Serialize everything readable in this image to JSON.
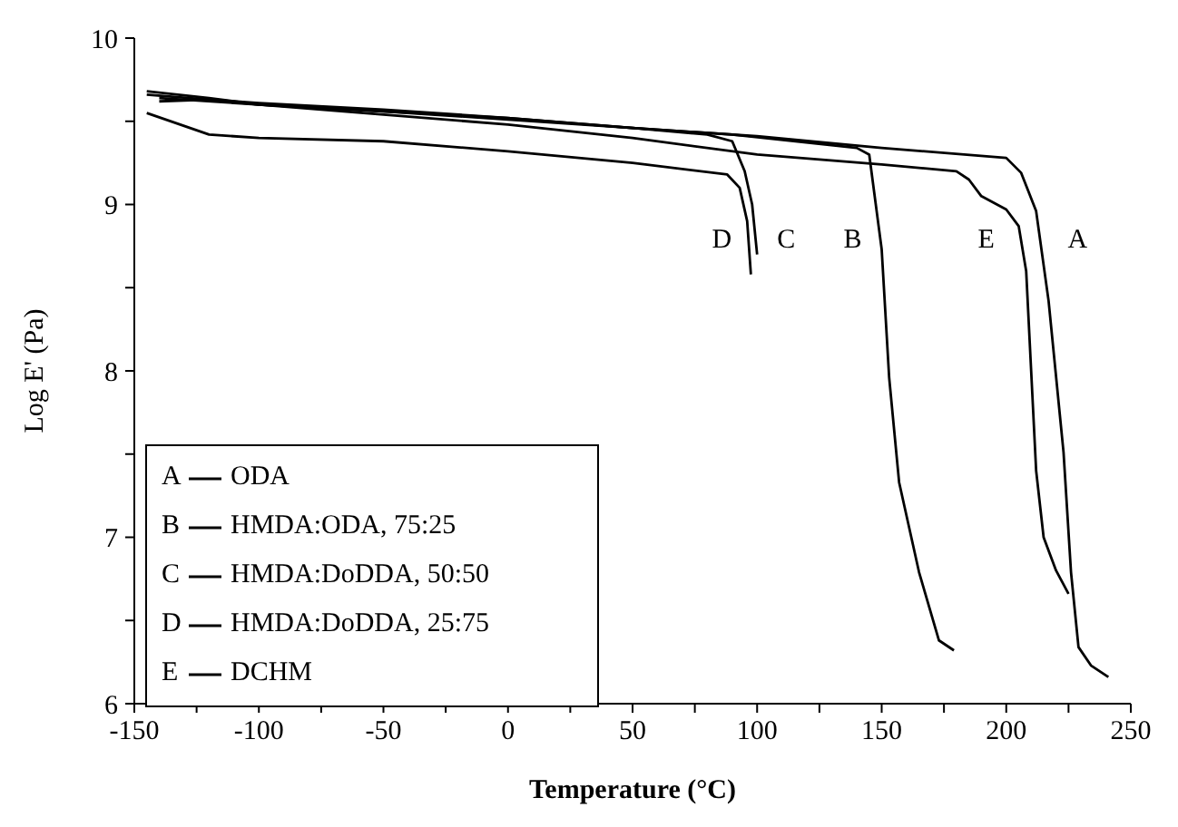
{
  "chart_data": {
    "type": "line",
    "xlabel": "Temperature (°C)",
    "ylabel": "Log E' (Pa)",
    "xlim": [
      -150,
      250
    ],
    "xticks": [
      -150,
      {
        "value": -125,
        "label": null
      },
      -100,
      {
        "value": -75,
        "label": null
      },
      -50,
      {
        "value": -25,
        "label": null
      },
      0,
      {
        "value": 25,
        "label": null
      },
      50,
      {
        "value": 75,
        "label": null
      },
      100,
      {
        "value": 125,
        "label": null
      },
      150,
      {
        "value": 175,
        "label": null
      },
      200,
      {
        "value": 225,
        "label": null
      },
      250
    ],
    "ylim": [
      6,
      10
    ],
    "yticks": [
      6,
      {
        "value": 6.5,
        "label": null
      },
      7,
      {
        "value": 7.5,
        "label": null
      },
      8,
      {
        "value": 8.5,
        "label": null
      },
      9,
      {
        "value": 9.5,
        "label": null
      },
      10
    ],
    "legend": "bottom left",
    "marker": "none",
    "line_style": "solid",
    "series": [
      {
        "name": "ODA",
        "color": "#000000",
        "x": [
          -145,
          -120,
          -100,
          -50,
          0,
          50,
          100,
          150,
          200,
          206,
          212,
          217,
          223,
          226,
          229,
          234,
          241
        ],
        "values": [
          9.68,
          9.64,
          9.6,
          9.56,
          9.52,
          9.46,
          9.41,
          9.34,
          9.28,
          9.19,
          8.96,
          8.42,
          7.51,
          6.79,
          6.34,
          6.23,
          6.16
        ]
      },
      {
        "name": "HMDA:ODA, 75:25",
        "color": "#000000",
        "x": [
          -145,
          -120,
          -100,
          -50,
          0,
          50,
          90,
          140,
          145,
          150,
          153,
          157,
          165,
          173,
          179
        ],
        "values": [
          9.66,
          9.63,
          9.6,
          9.56,
          9.51,
          9.46,
          9.42,
          9.34,
          9.3,
          8.73,
          7.96,
          7.33,
          6.79,
          6.38,
          6.32
        ]
      },
      {
        "name": "HMDA:DoDDA, 50:50",
        "color": "#000000",
        "x": [
          -140,
          -120,
          -100,
          -50,
          0,
          50,
          80,
          90,
          95,
          98,
          100
        ],
        "values": [
          9.62,
          9.63,
          9.61,
          9.57,
          9.52,
          9.46,
          9.42,
          9.38,
          9.2,
          9.0,
          8.7
        ]
      },
      {
        "name": "HMDA:DoDDA, 25:75",
        "color": "#000000",
        "x": [
          -145,
          -120,
          -100,
          -50,
          0,
          50,
          88,
          93,
          96,
          97.5
        ],
        "values": [
          9.55,
          9.42,
          9.4,
          9.38,
          9.32,
          9.25,
          9.18,
          9.1,
          8.9,
          8.58
        ]
      },
      {
        "name": "DCHM",
        "color": "#000000",
        "x": [
          -140,
          -100,
          -50,
          0,
          50,
          100,
          150,
          180,
          185,
          190,
          200,
          205,
          208,
          210,
          212,
          215,
          220,
          225
        ],
        "values": [
          9.64,
          9.6,
          9.54,
          9.48,
          9.4,
          9.3,
          9.24,
          9.2,
          9.15,
          9.05,
          8.97,
          8.87,
          8.6,
          8.0,
          7.4,
          7.0,
          6.8,
          6.66
        ]
      }
    ],
    "annotations": [
      "A",
      "B",
      "C",
      "D",
      "E"
    ]
  }
}
